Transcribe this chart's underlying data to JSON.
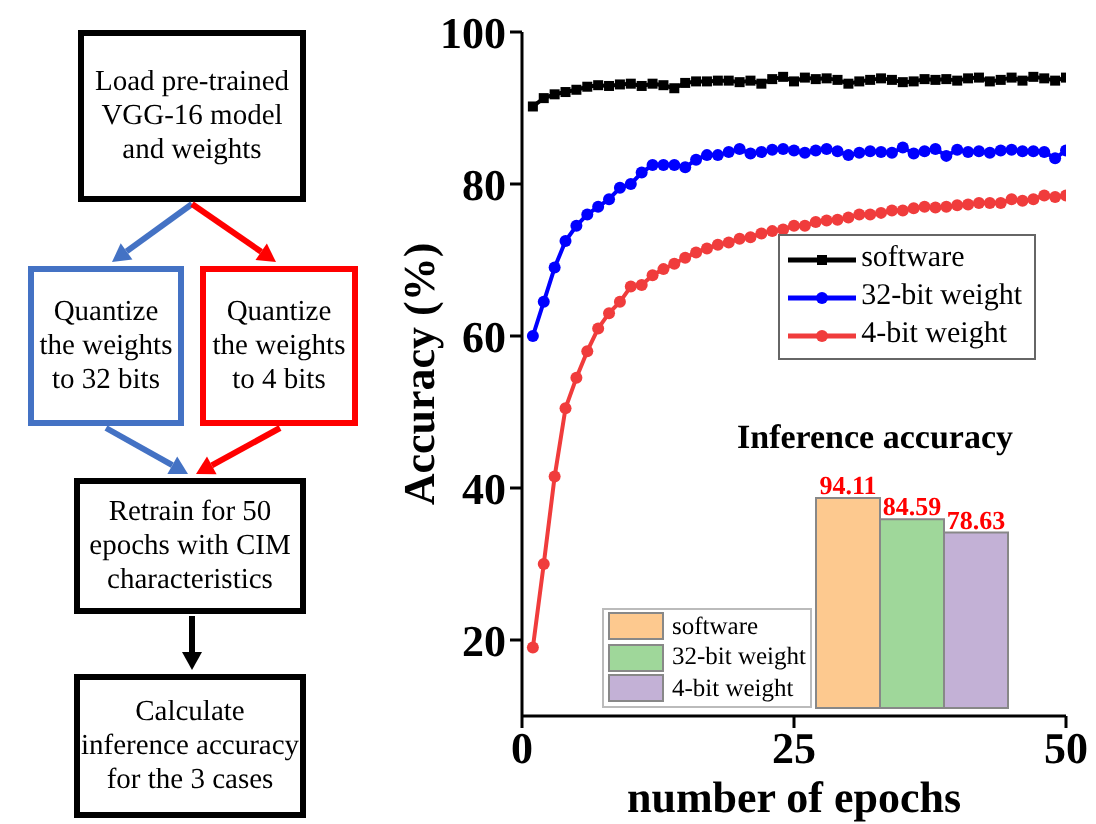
{
  "chart_data": [
    {
      "type": "other",
      "annotations": [
        "Load pre-trained VGG-16 model and weights",
        "Quantize the weights to 32 bits",
        "Quantize the weights to 4 bits",
        "Retrain for 50 epochs with CIM characteristics",
        "Calculate inference accuracy for the 3 cases"
      ],
      "colors": [
        "#000000",
        "#4472c4",
        "#ff0000",
        "#000000",
        "#000000"
      ]
    },
    {
      "type": "line",
      "xlabel": "number of epochs",
      "ylabel": "Accuracy (%)",
      "xlim": [
        0,
        50
      ],
      "xticks": [
        0,
        25,
        50
      ],
      "ylim": [
        10,
        100
      ],
      "yticks": [
        20,
        40,
        60,
        80,
        100
      ],
      "legend": "right",
      "x": [
        1,
        2,
        3,
        4,
        5,
        6,
        7,
        8,
        9,
        10,
        11,
        12,
        13,
        14,
        15,
        16,
        17,
        18,
        19,
        20,
        21,
        22,
        23,
        24,
        25,
        26,
        27,
        28,
        29,
        30,
        31,
        32,
        33,
        34,
        35,
        36,
        37,
        38,
        39,
        40,
        41,
        42,
        43,
        44,
        45,
        46,
        47,
        48,
        49,
        50
      ],
      "series": [
        {
          "name": "software",
          "color": "#000000",
          "marker": "square",
          "values": [
            90.2,
            91.3,
            91.8,
            92.1,
            92.4,
            92.8,
            93.0,
            92.9,
            93.1,
            93.2,
            92.9,
            93.2,
            93.0,
            92.6,
            93.3,
            93.5,
            93.5,
            93.6,
            93.6,
            93.4,
            93.6,
            93.2,
            93.8,
            94.1,
            93.5,
            94.0,
            93.8,
            93.9,
            93.7,
            93.2,
            93.5,
            93.7,
            93.9,
            93.7,
            93.4,
            93.5,
            93.8,
            93.7,
            93.8,
            93.6,
            93.9,
            94.0,
            93.5,
            93.7,
            94.0,
            93.6,
            94.1,
            93.9,
            93.6,
            94.0
          ]
        },
        {
          "name": "32-bit weight",
          "color": "#0000ff",
          "marker": "circle",
          "values": [
            60,
            64.5,
            69,
            72.5,
            74.5,
            76,
            77,
            78,
            79.5,
            80,
            81.5,
            82.5,
            82.5,
            82.5,
            82.2,
            83.2,
            83.8,
            83.8,
            84.2,
            84.6,
            84,
            84.2,
            84.5,
            84.6,
            84.4,
            84.1,
            84.4,
            84.6,
            84.3,
            83.8,
            84.1,
            84.3,
            84.2,
            84.1,
            84.8,
            84,
            84.3,
            84.6,
            83.7,
            84.5,
            84.2,
            84.3,
            84.1,
            84.4,
            84.5,
            84.3,
            84.3,
            84.2,
            83.4,
            84.4
          ]
        },
        {
          "name": "4-bit weight",
          "color": "#f03c3c",
          "marker": "circle",
          "values": [
            19,
            30,
            41.5,
            50.5,
            54.5,
            58,
            61,
            63,
            64.5,
            66.5,
            66.7,
            68,
            68.8,
            69.5,
            70.3,
            71,
            71.5,
            72,
            72.3,
            72.8,
            73,
            73.5,
            73.8,
            74,
            74.5,
            74.5,
            75,
            75.2,
            75.3,
            75.6,
            76,
            76,
            76.2,
            76.5,
            76.5,
            76.8,
            77,
            76.9,
            77,
            77.2,
            77.3,
            77.5,
            77.5,
            77.5,
            78,
            77.8,
            78,
            78.5,
            78.3,
            78.5
          ]
        }
      ]
    },
    {
      "type": "bar",
      "title": "Inference accuracy",
      "categories": [
        null
      ],
      "data_labels": true,
      "legend": "bottom left",
      "series": [
        {
          "name": "software",
          "color": "#fdc98f",
          "values": [
            94.11
          ]
        },
        {
          "name": "32-bit weight",
          "color": "#9fd79a",
          "values": [
            84.59
          ]
        },
        {
          "name": "4-bit weight",
          "color": "#c3b1d6",
          "values": [
            78.63
          ]
        }
      ]
    }
  ]
}
